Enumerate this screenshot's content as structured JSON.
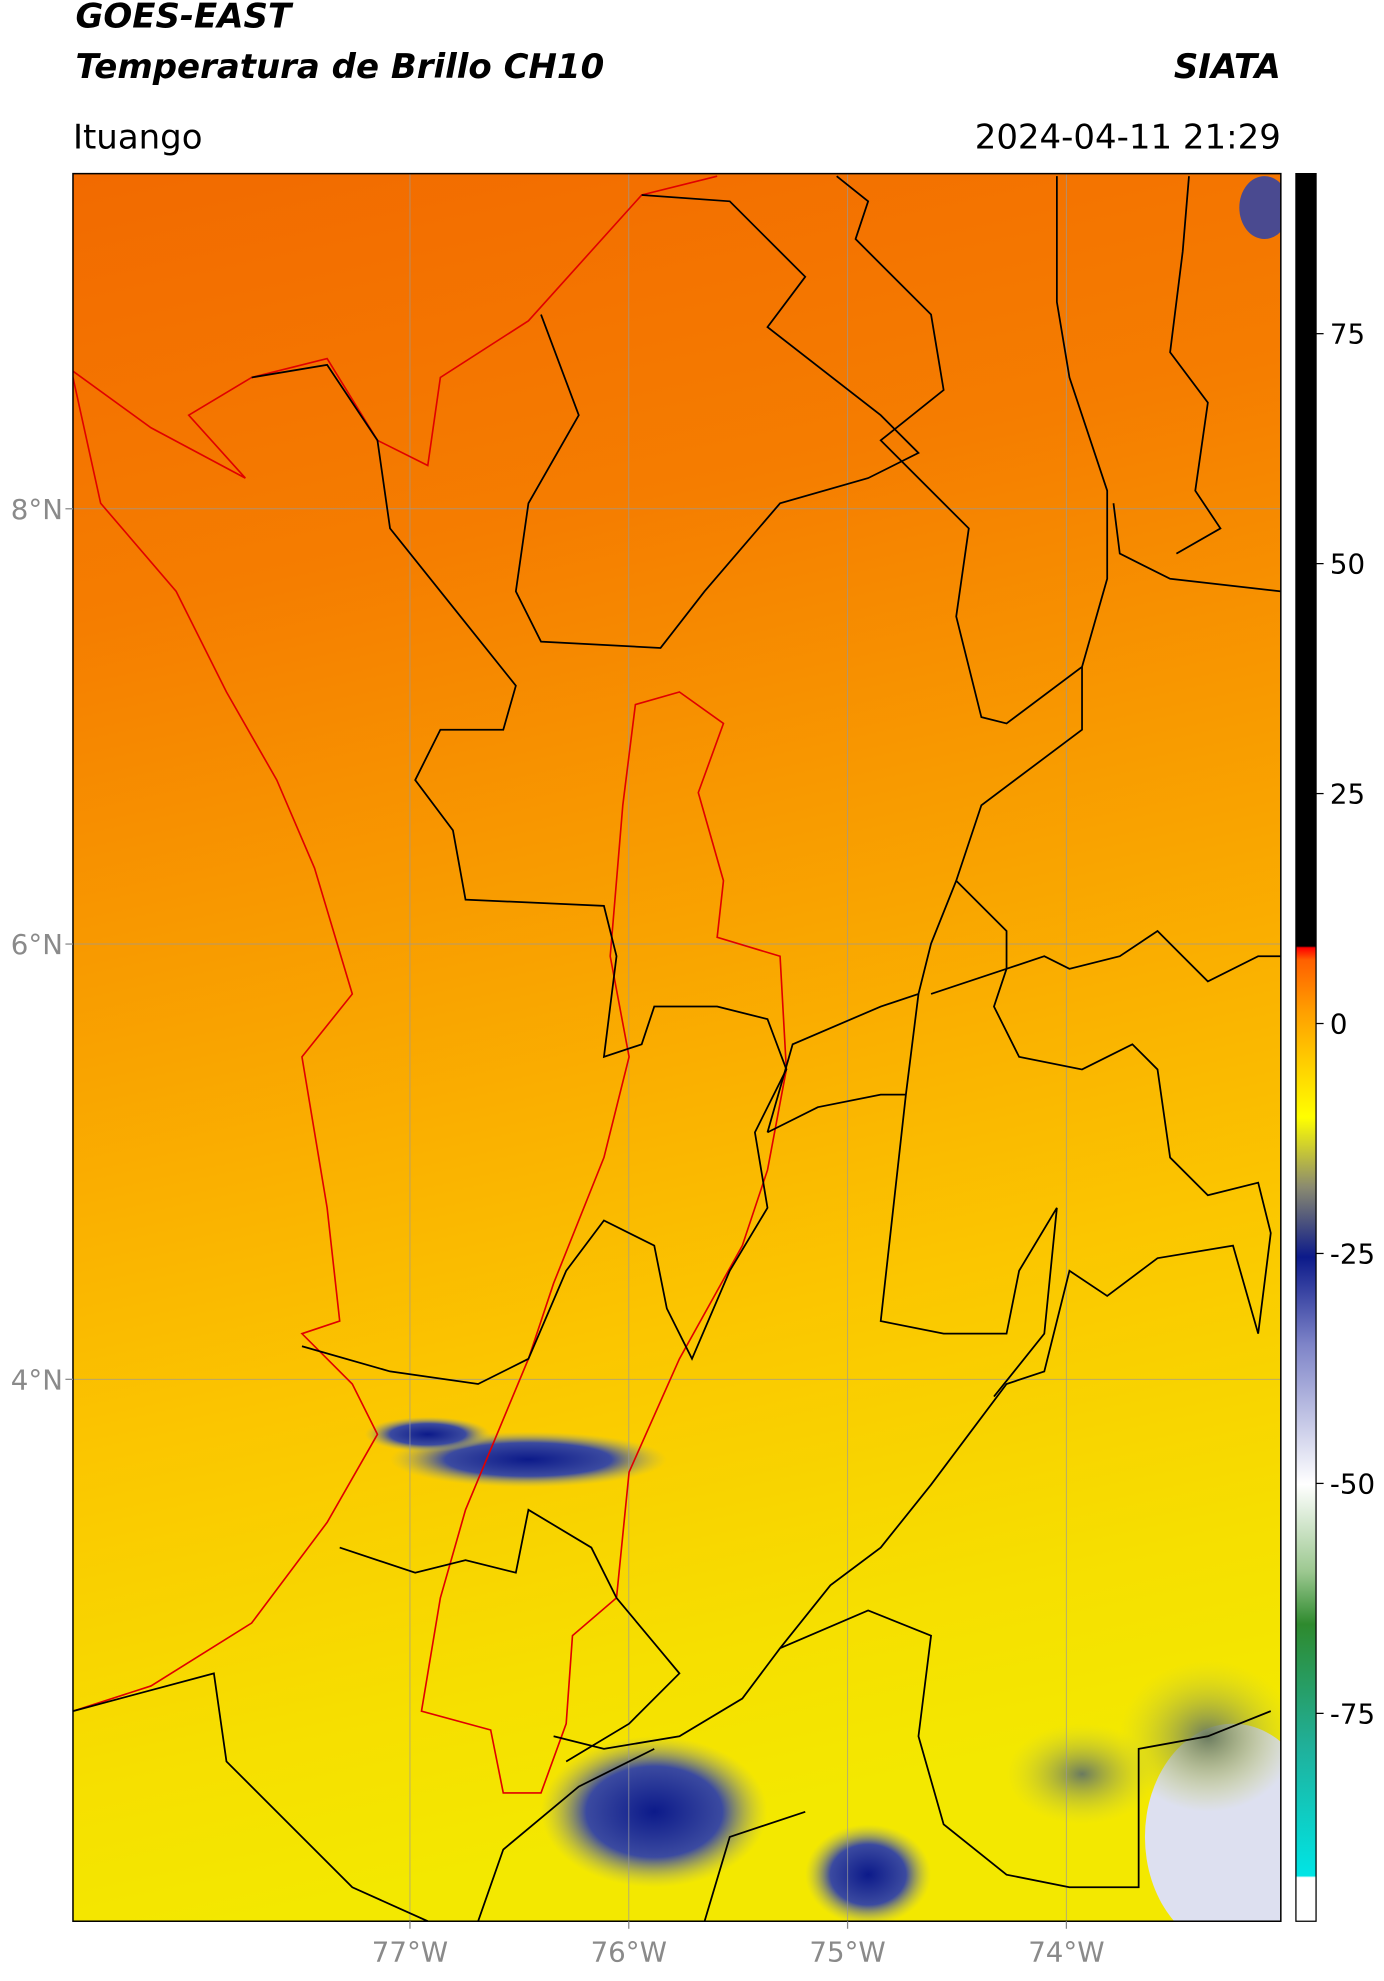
{
  "header": {
    "title": "GOES-EAST",
    "subtitle": "Temperatura de Brillo CH10",
    "credit": "SIATA",
    "location": "Ituango",
    "timestamp": "2024-04-11 21:29"
  },
  "map": {
    "xlim": [
      -78.54,
      -73.02
    ],
    "ylim": [
      1.51,
      9.54
    ],
    "xticks": [
      {
        "value": -77,
        "label": "77°W"
      },
      {
        "value": -76,
        "label": "76°W"
      },
      {
        "value": -75,
        "label": "75°W"
      },
      {
        "value": -74,
        "label": "74°W"
      }
    ],
    "yticks": [
      {
        "value": 8,
        "label": "8°N"
      },
      {
        "value": 6,
        "label": "6°N"
      },
      {
        "value": 4,
        "label": "4°N"
      }
    ],
    "grid": true
  },
  "colorbar": {
    "lim": [
      -97.6,
      92.4
    ],
    "ticks": [
      75,
      50,
      25,
      0,
      -25,
      -50,
      -75
    ]
  }
}
